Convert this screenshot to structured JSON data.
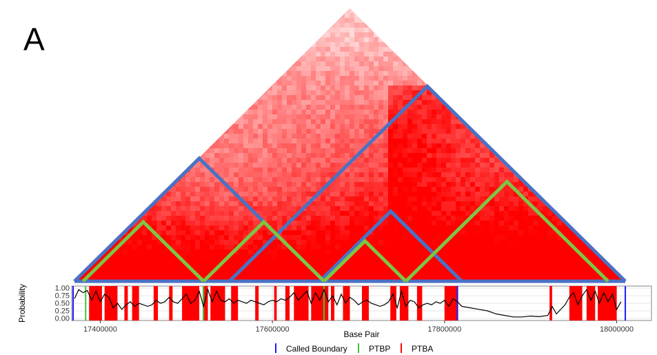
{
  "panel_label": "A",
  "colors": {
    "heat_base": "#ff0000",
    "called_boundary": "#1a1aff",
    "ptbp": "#3ec73e",
    "ptba": "#ff0000",
    "tad_outline": "#4a72c4",
    "tad_outline_green": "#7dc642",
    "probability_line": "#000000"
  },
  "chart_data": [
    {
      "type": "heatmap",
      "title": "",
      "description": "Triangular Hi-C contact map with nested TAD triangles",
      "x_range": [
        17370000,
        18010000
      ],
      "outer_triangle": {
        "start": 17370000,
        "end": 18010000,
        "apex_bp": 17690000
      },
      "blue_tads": [
        {
          "start": 17370000,
          "end": 17660000
        },
        {
          "start": 17550000,
          "end": 18010000
        },
        {
          "start": 17655000,
          "end": 17820000
        }
      ],
      "green_tads": [
        {
          "start": 17380000,
          "end": 17520000
        },
        {
          "start": 17520000,
          "end": 17660000
        },
        {
          "start": 17660000,
          "end": 17755000
        },
        {
          "start": 17755000,
          "end": 17990000
        }
      ]
    },
    {
      "type": "line",
      "title": "",
      "xlabel": "Base Pair",
      "ylabel": "Probability",
      "xlim": [
        17370000,
        18010000
      ],
      "ylim": [
        0,
        1
      ],
      "grid": true,
      "x_ticks": [
        "17400000",
        "17600000",
        "17800000",
        "18000000"
      ],
      "x_tick_values": [
        17400000,
        17600000,
        17800000,
        18000000
      ],
      "y_ticks": [
        "0.00",
        "0.25",
        "0.50",
        "0.75",
        "1.00"
      ],
      "legend": {
        "position": "bottom",
        "entries": [
          "Called Boundary",
          "PTBP",
          "PTBA"
        ]
      },
      "called_boundaries": [
        17358000,
        17815000,
        18010000
      ],
      "ptbp": [
        17383000,
        17520000,
        17660000
      ],
      "ptba_regions": [
        [
          17387000,
          17402000
        ],
        [
          17405000,
          17420000
        ],
        [
          17428000,
          17432000
        ],
        [
          17437000,
          17445000
        ],
        [
          17462000,
          17467000
        ],
        [
          17480000,
          17484000
        ],
        [
          17495000,
          17515000
        ],
        [
          17519000,
          17525000
        ],
        [
          17528000,
          17545000
        ],
        [
          17552000,
          17560000
        ],
        [
          17580000,
          17584000
        ],
        [
          17602000,
          17605000
        ],
        [
          17615000,
          17620000
        ],
        [
          17625000,
          17642000
        ],
        [
          17645000,
          17665000
        ],
        [
          17668000,
          17672000
        ],
        [
          17682000,
          17690000
        ],
        [
          17704000,
          17712000
        ],
        [
          17737000,
          17744000
        ],
        [
          17748000,
          17758000
        ],
        [
          17768000,
          17774000
        ],
        [
          17800000,
          17815000
        ],
        [
          17922000,
          17925000
        ],
        [
          17945000,
          17960000
        ],
        [
          17965000,
          17975000
        ],
        [
          17978000,
          18000000
        ]
      ],
      "series": [
        {
          "x": [
            17370000,
            17375000,
            17380000,
            17385000,
            17390000,
            17395000,
            17400000,
            17405000,
            17410000,
            17415000,
            17420000,
            17425000,
            17430000,
            17435000,
            17440000,
            17445000,
            17450000,
            17455000,
            17460000,
            17465000,
            17470000,
            17475000,
            17480000,
            17485000,
            17490000,
            17495000,
            17500000,
            17505000,
            17510000,
            17515000,
            17520000,
            17525000,
            17530000,
            17535000,
            17540000,
            17545000,
            17550000,
            17555000,
            17560000,
            17565000,
            17570000,
            17575000,
            17580000,
            17585000,
            17590000,
            17595000,
            17600000,
            17605000,
            17610000,
            17615000,
            17620000,
            17625000,
            17630000,
            17635000,
            17640000,
            17645000,
            17650000,
            17655000,
            17660000,
            17665000,
            17670000,
            17675000,
            17680000,
            17685000,
            17690000,
            17695000,
            17700000,
            17705000,
            17710000,
            17715000,
            17720000,
            17725000,
            17730000,
            17735000,
            17740000,
            17745000,
            17750000,
            17755000,
            17760000,
            17765000,
            17770000,
            17775000,
            17780000,
            17785000,
            17790000,
            17795000,
            17800000,
            17805000,
            17810000,
            17815000,
            17820000,
            17830000,
            17840000,
            17850000,
            17860000,
            17870000,
            17880000,
            17890000,
            17900000,
            17910000,
            17920000,
            17925000,
            17930000,
            17940000,
            17945000,
            17950000,
            17955000,
            17960000,
            17965000,
            17970000,
            17975000,
            17980000,
            17985000,
            17990000,
            17995000,
            18000000,
            18005000
          ],
          "y": [
            0.65,
            0.95,
            0.85,
            0.92,
            0.6,
            0.9,
            0.55,
            0.8,
            0.7,
            0.35,
            0.5,
            0.3,
            0.45,
            0.55,
            0.4,
            0.5,
            0.45,
            0.4,
            0.45,
            0.6,
            0.5,
            0.55,
            0.7,
            0.55,
            0.5,
            0.65,
            0.8,
            0.5,
            0.6,
            0.9,
            0.4,
            0.95,
            0.55,
            0.9,
            0.6,
            0.55,
            0.65,
            0.5,
            0.6,
            0.55,
            0.5,
            0.6,
            0.55,
            0.5,
            0.45,
            0.55,
            0.6,
            0.55,
            0.65,
            0.6,
            0.7,
            0.85,
            0.6,
            0.75,
            0.9,
            0.5,
            0.85,
            0.6,
            0.95,
            0.55,
            0.75,
            0.45,
            0.8,
            0.5,
            0.7,
            0.6,
            0.45,
            0.55,
            0.6,
            0.5,
            0.45,
            0.4,
            0.45,
            0.55,
            0.8,
            0.35,
            0.9,
            0.4,
            0.6,
            0.55,
            0.35,
            0.45,
            0.5,
            0.45,
            0.55,
            0.5,
            0.6,
            0.4,
            0.65,
            0.55,
            0.4,
            0.35,
            0.3,
            0.25,
            0.15,
            0.1,
            0.05,
            0.05,
            0.08,
            0.06,
            0.1,
            0.4,
            0.15,
            0.45,
            0.7,
            0.85,
            0.45,
            0.75,
            0.95,
            0.6,
            0.9,
            0.5,
            0.85,
            0.55,
            0.8,
            0.3,
            0.55
          ]
        }
      ]
    }
  ]
}
